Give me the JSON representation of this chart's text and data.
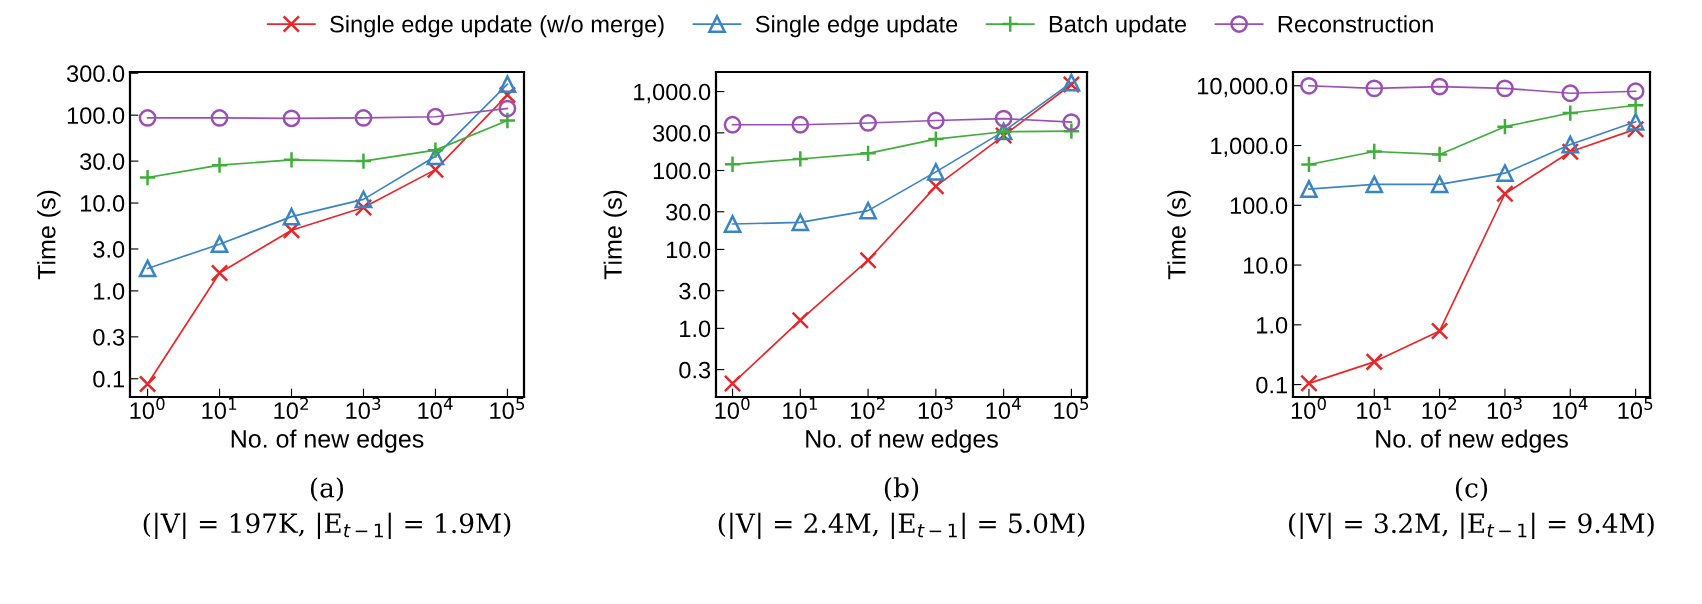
{
  "chart_data": [
    {
      "type": "line",
      "xlabel": "No. of new edges",
      "ylabel": "Time (s)",
      "log": "xy",
      "legend": "top",
      "line_style": "solid",
      "grid": false,
      "x": [
        1,
        10,
        100,
        1000,
        10000,
        100000
      ],
      "xlim": [
        0.57,
        170000
      ],
      "xticks": [
        {
          "value": 1,
          "label": "10$^{0}$"
        },
        {
          "value": 10,
          "label": "10$^{1}$"
        },
        {
          "value": 100,
          "label": "10$^{2}$"
        },
        {
          "value": 1000,
          "label": "10$^{3}$"
        },
        {
          "value": 10000,
          "label": "10$^{4}$"
        },
        {
          "value": 100000,
          "label": "10$^{5}$"
        }
      ],
      "ylim": [
        0.062,
        310
      ],
      "yticks": [
        {
          "value": 0.1,
          "label": "0.1"
        },
        {
          "value": 0.3,
          "label": "0.3"
        },
        {
          "value": 1,
          "label": "1.0"
        },
        {
          "value": 3,
          "label": "3.0"
        },
        {
          "value": 10,
          "label": "10.0"
        },
        {
          "value": 30,
          "label": "30.0"
        },
        {
          "value": 100,
          "label": "100.0"
        },
        {
          "value": 300,
          "label": "300.0"
        }
      ],
      "series": [
        {
          "name": "Single edge update (w/o merge)",
          "color": "#e8262a",
          "marker": "cross",
          "values": [
            0.087,
            1.6,
            4.9,
            8.9,
            24,
            170
          ]
        },
        {
          "name": "Single edge update",
          "color": "#3a84c4",
          "marker": "triangle",
          "values": [
            1.8,
            3.4,
            7.0,
            11,
            34,
            225
          ]
        },
        {
          "name": "Batch update",
          "color": "#3fae3a",
          "marker": "plus",
          "values": [
            19.5,
            27,
            31,
            30,
            40,
            87
          ]
        },
        {
          "name": "Reconstruction",
          "color": "#9b4fb5",
          "marker": "circle",
          "values": [
            93,
            93,
            92,
            93,
            96,
            119
          ]
        }
      ],
      "annotations": [
        "(a)",
        "(|V| = 197K, |E$_{t−1}$| = 1.9M)"
      ]
    },
    {
      "type": "line",
      "xlabel": "No. of new edges",
      "ylabel": "Time (s)",
      "log": "xy",
      "line_style": "solid",
      "grid": false,
      "x": [
        1,
        10,
        100,
        1000,
        10000,
        100000
      ],
      "xlim": [
        0.57,
        170000
      ],
      "xticks": [
        {
          "value": 1,
          "label": "10$^{0}$"
        },
        {
          "value": 10,
          "label": "10$^{1}$"
        },
        {
          "value": 100,
          "label": "10$^{2}$"
        },
        {
          "value": 1000,
          "label": "10$^{3}$"
        },
        {
          "value": 10000,
          "label": "10$^{4}$"
        },
        {
          "value": 100000,
          "label": "10$^{5}$"
        }
      ],
      "ylim": [
        0.135,
        1770.0
      ],
      "yticks": [
        {
          "value": 0.3,
          "label": "0.3"
        },
        {
          "value": 1,
          "label": "1.0"
        },
        {
          "value": 3,
          "label": "3.0"
        },
        {
          "value": 10,
          "label": "10.0"
        },
        {
          "value": 30,
          "label": "30.0"
        },
        {
          "value": 100,
          "label": "100.0"
        },
        {
          "value": 300,
          "label": "300.0"
        },
        {
          "value": 1000,
          "label": "1,000.0"
        }
      ],
      "series": [
        {
          "color": "#e8262a",
          "marker": "cross",
          "values": [
            0.2,
            1.27,
            7.3,
            63,
            277,
            1230
          ]
        },
        {
          "color": "#3a84c4",
          "marker": "triangle",
          "values": [
            21,
            22,
            31,
            96,
            313,
            1300
          ]
        },
        {
          "color": "#3fae3a",
          "marker": "plus",
          "values": [
            120,
            140,
            165,
            250,
            310,
            315
          ]
        },
        {
          "color": "#9b4fb5",
          "marker": "circle",
          "values": [
            380,
            380,
            400,
            430,
            455,
            410
          ]
        }
      ],
      "annotations": [
        "(b)",
        "(|V| = 2.4M, |E$_{t−1}$| = 5.0M)"
      ]
    },
    {
      "type": "line",
      "xlabel": "No. of new edges",
      "ylabel": "Time (s)",
      "log": "xy",
      "line_style": "solid",
      "grid": false,
      "x": [
        1,
        10,
        100,
        1000,
        10000,
        100000
      ],
      "xlim": [
        0.57,
        166000
      ],
      "xticks": [
        {
          "value": 1,
          "label": "10$^{0}$"
        },
        {
          "value": 10,
          "label": "10$^{1}$"
        },
        {
          "value": 100,
          "label": "10$^{2}$"
        },
        {
          "value": 1000,
          "label": "10$^{3}$"
        },
        {
          "value": 10000,
          "label": "10$^{4}$"
        },
        {
          "value": 100000,
          "label": "10$^{5}$"
        }
      ],
      "ylim": [
        0.062,
        17000
      ],
      "yticks": [
        {
          "value": 0.1,
          "label": "0.1"
        },
        {
          "value": 1,
          "label": "1.0"
        },
        {
          "value": 10,
          "label": "10.0"
        },
        {
          "value": 100,
          "label": "100.0"
        },
        {
          "value": 1000,
          "label": "1,000.0"
        },
        {
          "value": 10000,
          "label": "10,000.0"
        }
      ],
      "series": [
        {
          "color": "#e8262a",
          "marker": "cross",
          "values": [
            0.105,
            0.24,
            0.79,
            156,
            785,
            1880
          ]
        },
        {
          "color": "#3a84c4",
          "marker": "triangle",
          "values": [
            187,
            224,
            224,
            345,
            1040,
            2500
          ]
        },
        {
          "color": "#3fae3a",
          "marker": "plus",
          "values": [
            482,
            795,
            710,
            2070,
            3500,
            4700
          ]
        },
        {
          "color": "#9b4fb5",
          "marker": "circle",
          "values": [
            10000,
            9050,
            9700,
            9050,
            7500,
            8100
          ]
        }
      ],
      "annotations": [
        "(c)",
        "(|V| = 3.2M, |E$_{t−1}$| = 9.4M)"
      ]
    }
  ]
}
